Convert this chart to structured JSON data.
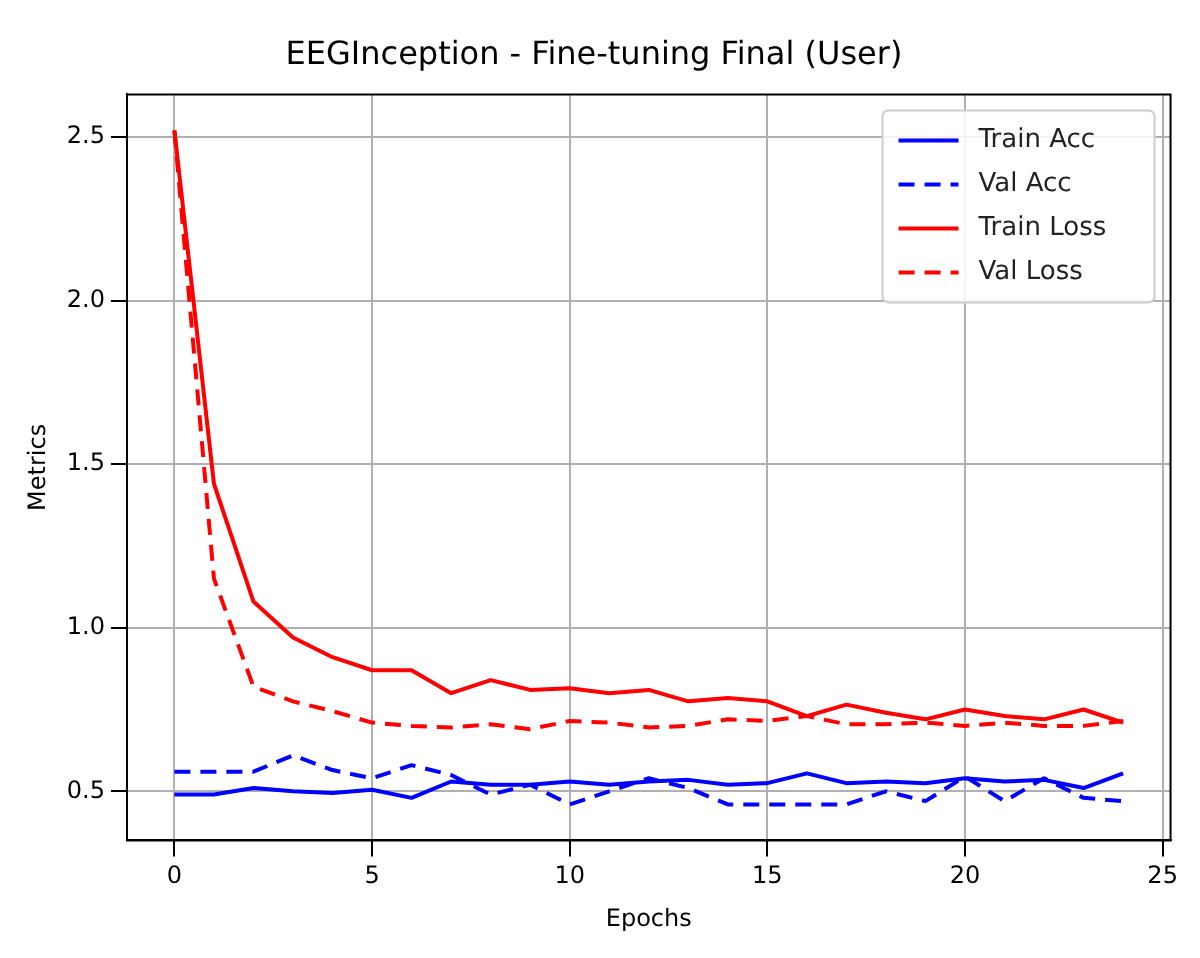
{
  "chart_data": {
    "type": "line",
    "title": "EEGInception - Fine-tuning Final (User)",
    "xlabel": "Epochs",
    "ylabel": "Metrics",
    "x": [
      0,
      1,
      2,
      3,
      4,
      5,
      6,
      7,
      8,
      9,
      10,
      11,
      12,
      13,
      14,
      15,
      16,
      17,
      18,
      19,
      20,
      21,
      22,
      23,
      24
    ],
    "series": [
      {
        "name": "Train Acc",
        "color": "#0000ff",
        "line_style": "solid",
        "values": [
          0.49,
          0.49,
          0.51,
          0.5,
          0.495,
          0.505,
          0.48,
          0.53,
          0.52,
          0.52,
          0.53,
          0.52,
          0.53,
          0.535,
          0.52,
          0.525,
          0.555,
          0.525,
          0.53,
          0.525,
          0.54,
          0.53,
          0.535,
          0.51,
          0.555
        ]
      },
      {
        "name": "Val Acc",
        "color": "#0000ff",
        "line_style": "dashed",
        "values": [
          0.56,
          0.56,
          0.56,
          0.61,
          0.565,
          0.54,
          0.58,
          0.55,
          0.49,
          0.52,
          0.46,
          0.5,
          0.54,
          0.51,
          0.46,
          0.46,
          0.46,
          0.46,
          0.5,
          0.47,
          0.545,
          0.47,
          0.54,
          0.48,
          0.47
        ]
      },
      {
        "name": "Train Loss",
        "color": "#ff0000",
        "line_style": "solid",
        "values": [
          2.52,
          1.44,
          1.08,
          0.97,
          0.91,
          0.87,
          0.87,
          0.8,
          0.84,
          0.81,
          0.815,
          0.8,
          0.81,
          0.775,
          0.785,
          0.775,
          0.73,
          0.765,
          0.74,
          0.72,
          0.75,
          0.73,
          0.72,
          0.75,
          0.71
        ]
      },
      {
        "name": "Val Loss",
        "color": "#ff0000",
        "line_style": "dashed",
        "values": [
          2.52,
          1.15,
          0.82,
          0.775,
          0.745,
          0.71,
          0.7,
          0.695,
          0.705,
          0.69,
          0.715,
          0.71,
          0.695,
          0.7,
          0.72,
          0.715,
          0.73,
          0.705,
          0.705,
          0.71,
          0.7,
          0.71,
          0.7,
          0.7,
          0.715
        ]
      }
    ],
    "xlim": [
      -1.2,
      25.2
    ],
    "xticks": [
      0,
      5,
      10,
      15,
      20,
      25
    ],
    "ylim": [
      0.35,
      2.63
    ],
    "yticks": [
      0.5,
      {
        "value": 1,
        "label": "1.0"
      },
      1.5,
      {
        "value": 2,
        "label": "2.0"
      },
      2.5
    ],
    "grid": true,
    "legend": "top right",
    "marker": "none"
  }
}
